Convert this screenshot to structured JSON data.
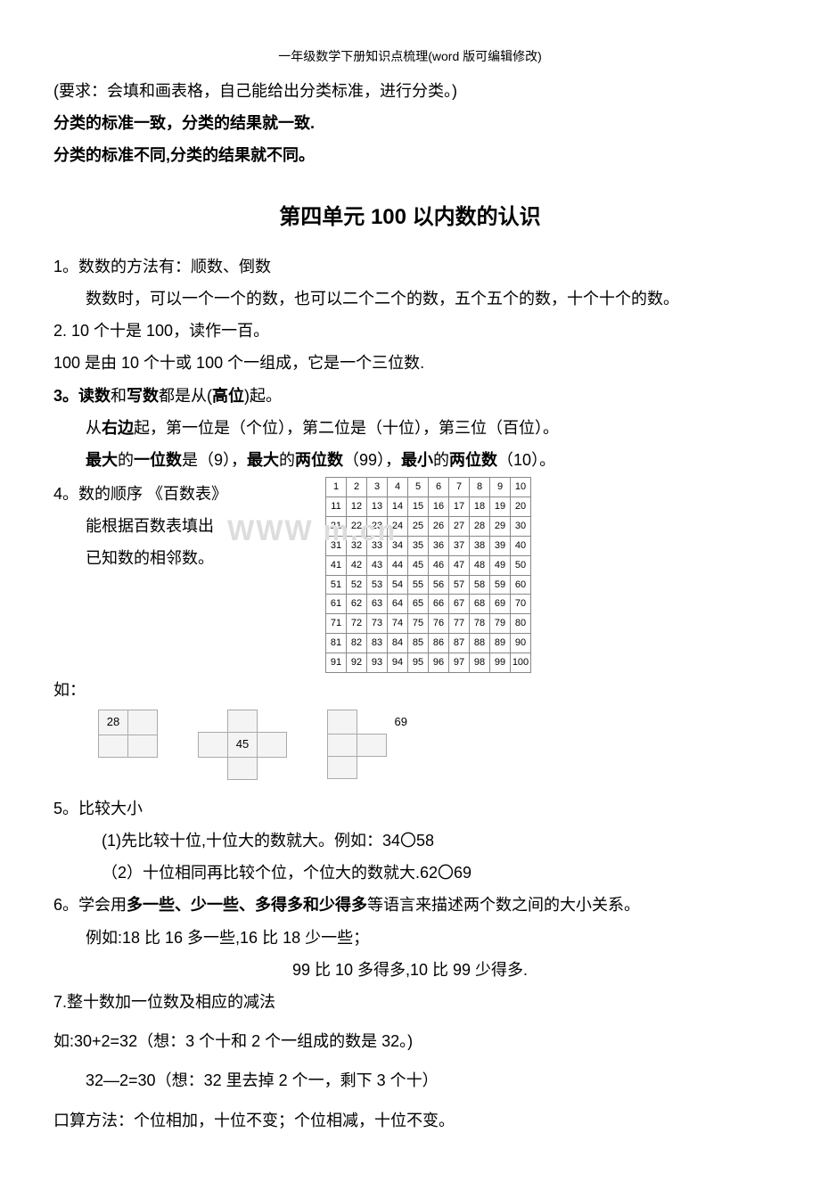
{
  "header_note": "一年级数学下册知识点梳理(word 版可编辑修改)",
  "pre": {
    "l1": "(要求：会填和画表格，自己能给出分类标准，进行分类。)",
    "l2": "分类的标准一致，分类的结果就一致.",
    "l3": "分类的标准不同,分类的结果就不同。"
  },
  "unit_title": "第四单元 100 以内数的认识",
  "p1": {
    "a": "1。数数的方法有：顺数、倒数",
    "b": "数数时，可以一个一个的数，也可以二个二个的数，五个五个的数，十个十个的数。"
  },
  "p2": {
    "a": "2. 10 个十是 100，读作一百。",
    "b": " 100 是由 10 个十或 100 个一组成，它是一个三位数."
  },
  "p3": {
    "a_pre": "3。",
    "a_b1": "读数",
    "a_mid": "和",
    "a_b2": "写数",
    "a_post": "都是从(",
    "a_b3": "高位",
    "a_end": ")起。",
    "b_pre": "从",
    "b_b1": "右边",
    "b_post": "起，第一位是（个位），第二位是（十位），第三位（百位）。",
    "c_b1": "最大",
    "c_t1": "的",
    "c_b2": "一位数",
    "c_t2": "是（9），",
    "c_b3": "最大",
    "c_t3": "的",
    "c_b4": "两位数",
    "c_t4": "（99），",
    "c_b5": "最小",
    "c_t5": "的",
    "c_b6": "两位数",
    "c_t6": "（10）。"
  },
  "p4": {
    "a": "4。数的顺序  《百数表》",
    "b": "能根据百数表填出",
    "c": "已知数的相邻数。",
    "ex_label": "如：",
    "ex1": "28",
    "ex2": "45",
    "ex3": "69"
  },
  "hundred_table": {
    "rows": 10,
    "cols": 10,
    "start": 1,
    "end": 100
  },
  "watermark": "WWW              m.cn",
  "p5": {
    "a": "5。比较大小",
    "b": "(1)先比较十位,十位大的数就大。例如：34〇58",
    "c": "（2）十位相同再比较个位，个位大的数就大.62〇69"
  },
  "p6": {
    "a_pre": "6。学会用",
    "a_b": "多一些、少一些、多得多和少得多",
    "a_post": "等语言来描述两个数之间的大小关系。",
    "b": "例如:18 比 16 多一些,16 比 18 少一些；",
    "c": "99 比 10 多得多,10 比 99 少得多."
  },
  "p7": {
    "a": "7.整十数加一位数及相应的减法",
    "b": "如:30+2=32（想：3 个十和 2 个一组成的数是 32。)",
    "c": "32—2=30（想：32 里去掉 2 个一，剩下 3 个十）",
    "d": "口算方法：个位相加，十位不变；个位相减，十位不变。"
  }
}
